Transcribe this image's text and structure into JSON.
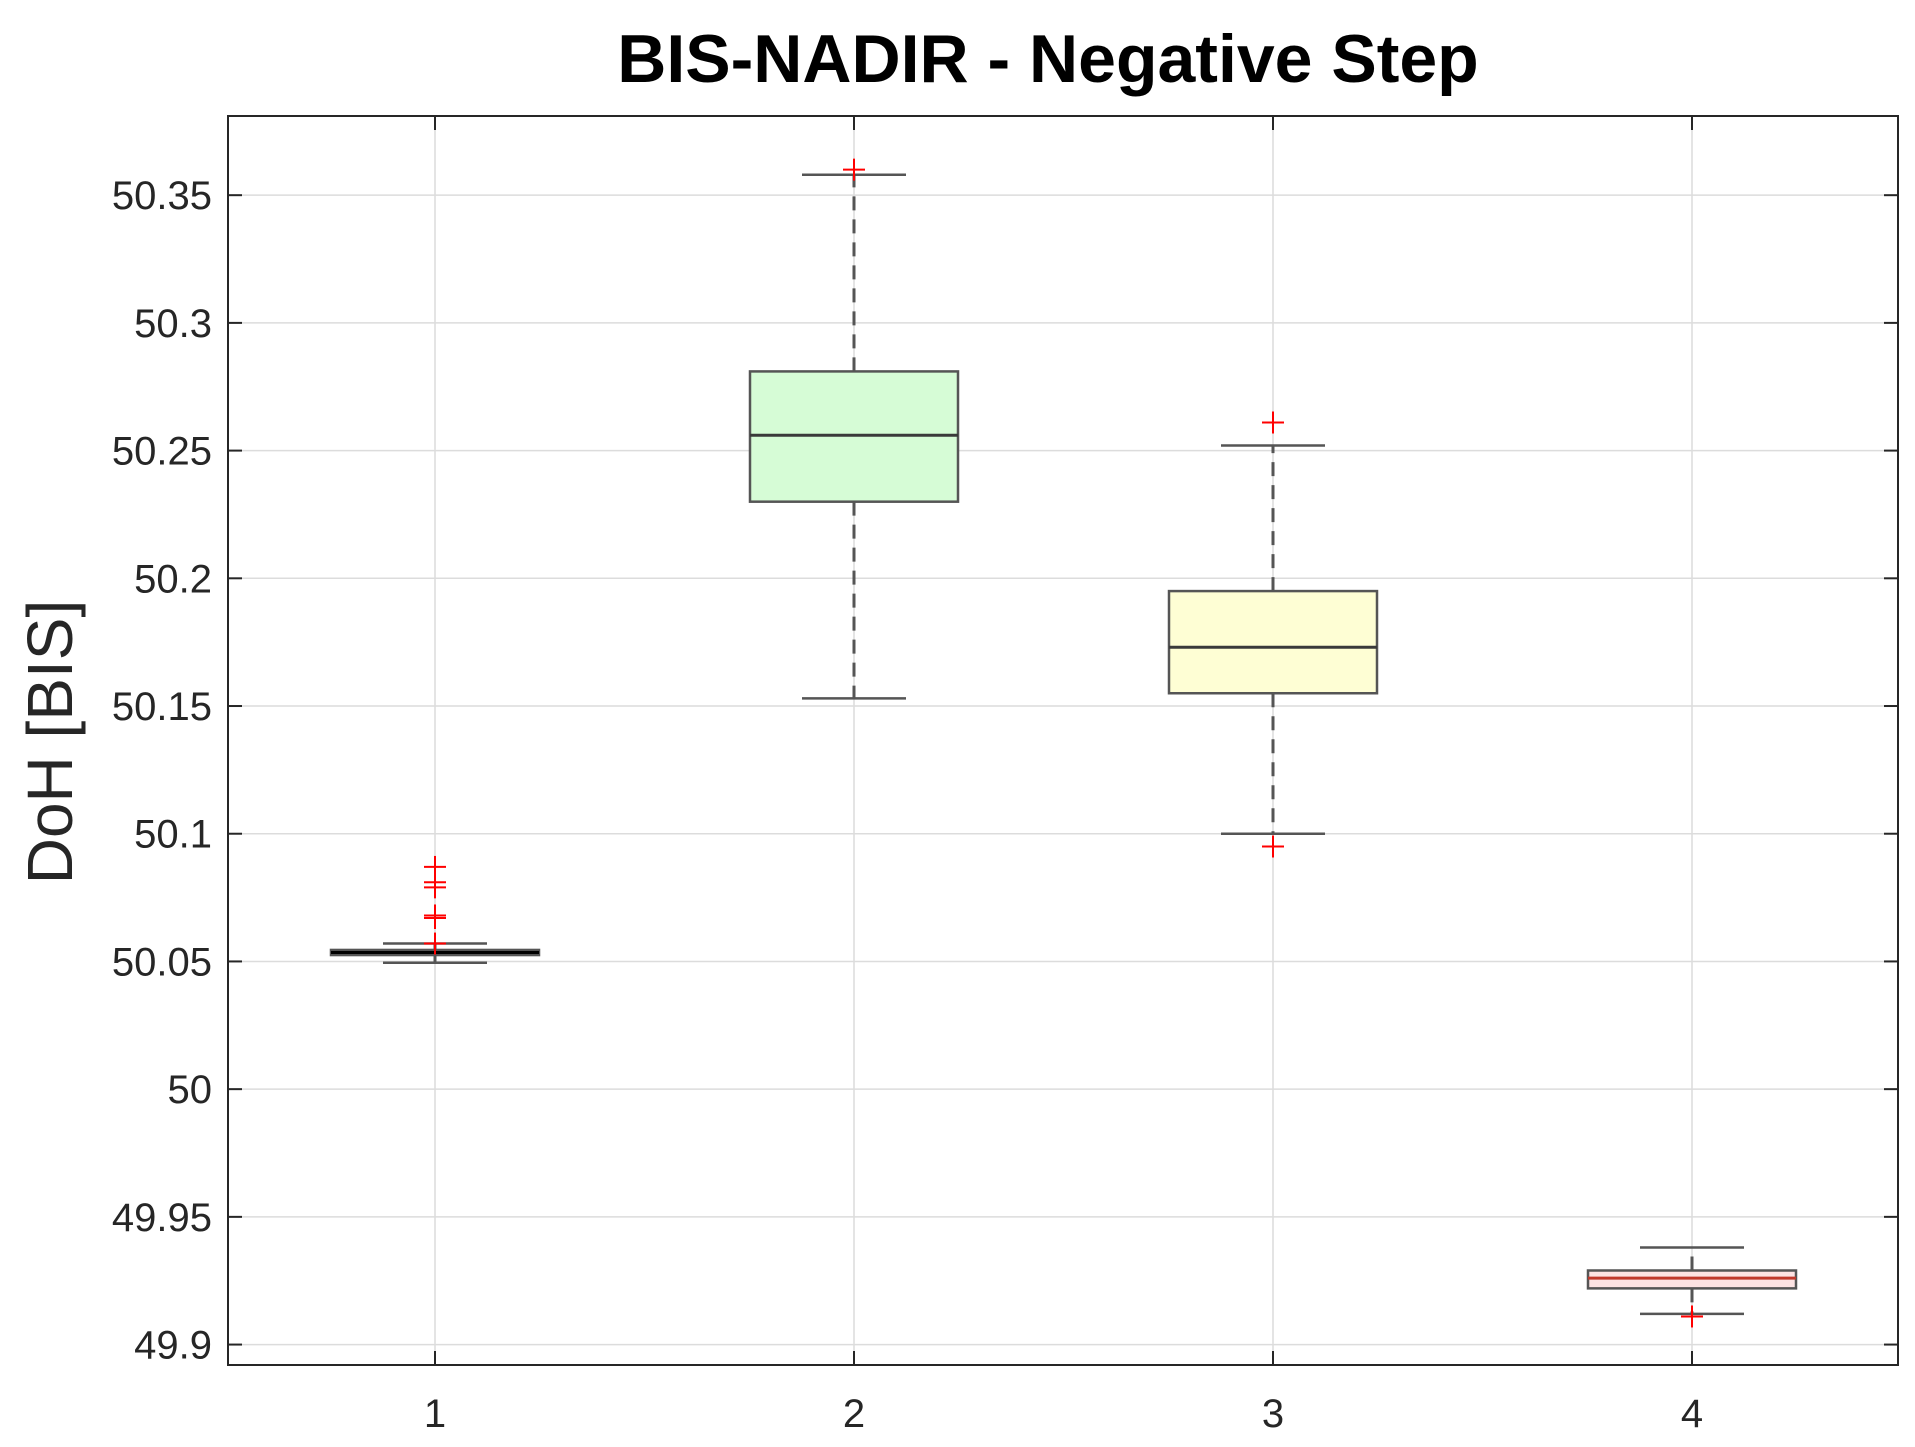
{
  "chart_data": {
    "type": "box",
    "title": "BIS-NADIR - Negative Step",
    "ylabel": "DoH [BIS]",
    "xlabel": "",
    "categories": [
      "1",
      "2",
      "3",
      "4"
    ],
    "ylim": [
      49.892,
      50.381
    ],
    "yticks": [
      49.9,
      49.95,
      50,
      50.05,
      50.1,
      50.15,
      50.2,
      50.25,
      50.3,
      50.35
    ],
    "ytick_labels": [
      "49.9",
      "49.95",
      "50",
      "50.05",
      "50.1",
      "50.15",
      "50.2",
      "50.25",
      "50.3",
      "50.35"
    ],
    "grid": true,
    "boxes": [
      {
        "category": "1",
        "q1": 50.0525,
        "median": 50.0535,
        "q3": 50.0545,
        "whisker_low": 50.0495,
        "whisker_high": 50.057,
        "outliers": [
          50.087,
          50.081,
          50.079,
          50.068,
          50.067,
          50.057
        ],
        "fill": "#1f1f4f",
        "median_color": "#000000"
      },
      {
        "category": "2",
        "q1": 50.23,
        "median": 50.256,
        "q3": 50.281,
        "whisker_low": 50.153,
        "whisker_high": 50.358,
        "outliers": [
          50.36
        ],
        "fill": "#d6fcd6",
        "median_color": "#3a3a3a"
      },
      {
        "category": "3",
        "q1": 50.155,
        "median": 50.173,
        "q3": 50.195,
        "whisker_low": 50.1,
        "whisker_high": 50.252,
        "outliers": [
          50.261,
          50.095
        ],
        "fill": "#fefed4",
        "median_color": "#3a3a3a"
      },
      {
        "category": "4",
        "q1": 49.922,
        "median": 49.926,
        "q3": 49.929,
        "whisker_low": 49.912,
        "whisker_high": 49.938,
        "outliers": [
          49.911
        ],
        "fill": "#fde3e3",
        "median_color": "#c0392b"
      }
    ],
    "colors": {
      "outlier": "#ff0000",
      "box_edge": "#555555",
      "whisker": "#555555",
      "grid": "#dcdcdc",
      "axis": "#262626"
    }
  }
}
